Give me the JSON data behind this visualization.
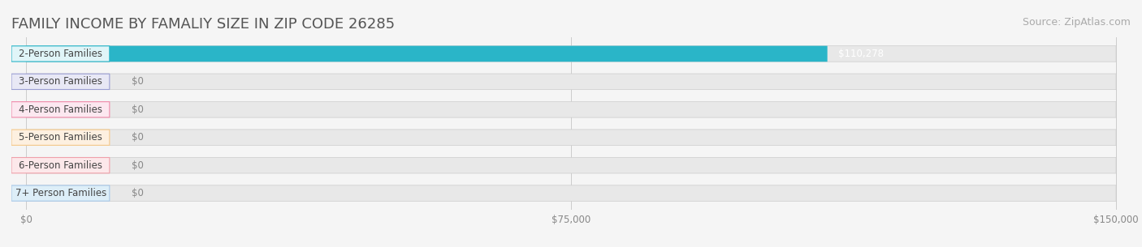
{
  "title": "FAMILY INCOME BY FAMALIY SIZE IN ZIP CODE 26285",
  "source": "Source: ZipAtlas.com",
  "categories": [
    "2-Person Families",
    "3-Person Families",
    "4-Person Families",
    "5-Person Families",
    "6-Person Families",
    "7+ Person Families"
  ],
  "values": [
    110278,
    0,
    0,
    0,
    0,
    0
  ],
  "bar_colors": [
    "#2ab5c8",
    "#9b9fd4",
    "#f08aaa",
    "#f5c98a",
    "#f0a0aa",
    "#a8c8e8"
  ],
  "label_bg_colors": [
    "#e0f5f8",
    "#e8e8f5",
    "#fce8f0",
    "#fdf0e0",
    "#fce8ea",
    "#ddeef8"
  ],
  "value_labels": [
    "$110,278",
    "$0",
    "$0",
    "$0",
    "$0",
    "$0"
  ],
  "xlim": [
    0,
    150000
  ],
  "xticks": [
    0,
    75000,
    150000
  ],
  "xtick_labels": [
    "$0",
    "$75,000",
    "$150,000"
  ],
  "bar_height": 0.55,
  "bg_color": "#f5f5f5",
  "bar_bg_color": "#e8e8e8",
  "title_color": "#555555",
  "title_fontsize": 13,
  "source_fontsize": 9,
  "label_fontsize": 8.5,
  "value_fontsize": 8.5
}
